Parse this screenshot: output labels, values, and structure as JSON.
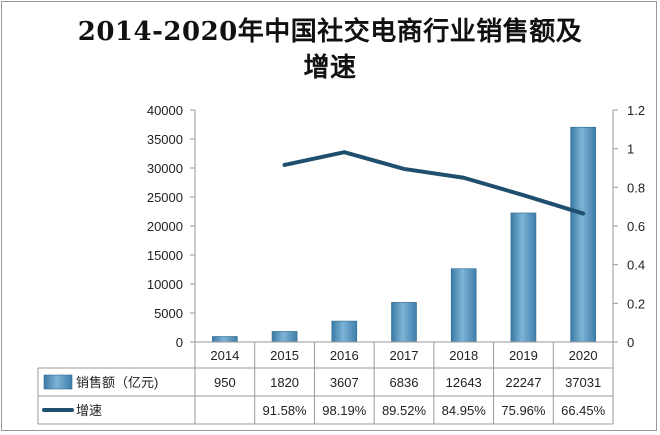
{
  "title_lines": [
    "2014-2020年中国社交电商行业销售额及",
    "增速"
  ],
  "chart_data": {
    "type": "bar",
    "title": "2014-2020年中国社交电商行业销售额及增速",
    "categories": [
      "2014",
      "2015",
      "2016",
      "2017",
      "2018",
      "2019",
      "2020"
    ],
    "series": [
      {
        "name": "销售额（亿元)",
        "type": "bar",
        "axis": "left",
        "color": "#4f8fb8",
        "values": [
          950,
          1820,
          3607,
          6836,
          12643,
          22247,
          37031
        ],
        "table_values": [
          "950",
          "1820",
          "3607",
          "6836",
          "12643",
          "22247",
          "37031"
        ]
      },
      {
        "name": "增速",
        "type": "line",
        "axis": "right",
        "color": "#1f4e6e",
        "values": [
          null,
          0.9158,
          0.9819,
          0.8952,
          0.8495,
          0.7596,
          0.6645
        ],
        "table_values": [
          "",
          "91.58%",
          "98.19%",
          "89.52%",
          "84.95%",
          "75.96%",
          "66.45%"
        ]
      }
    ],
    "y_left": {
      "min": 0,
      "max": 40000,
      "ticks": [
        "0",
        "5000",
        "10000",
        "15000",
        "20000",
        "25000",
        "30000",
        "35000",
        "40000"
      ]
    },
    "y_right": {
      "min": 0,
      "max": 1.2,
      "ticks": [
        "0",
        "0.2",
        "0.4",
        "0.6",
        "0.8",
        "1",
        "1.2"
      ]
    },
    "data_table": true,
    "legend_position": "in data table"
  }
}
